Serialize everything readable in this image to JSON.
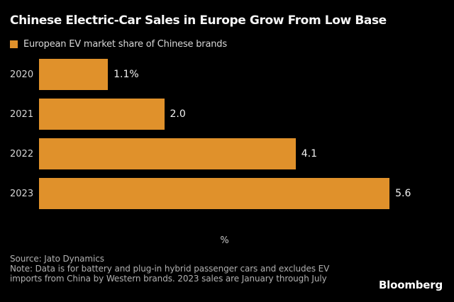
{
  "header": {
    "title": "Chinese Electric-Car Sales in Europe Grow From Low Base"
  },
  "legend": {
    "label": "European EV market share of Chinese brands",
    "swatch_color": "#e0912b"
  },
  "chart_data": {
    "type": "bar",
    "orientation": "horizontal",
    "title": "Chinese Electric-Car Sales in Europe Grow From Low Base",
    "legend": [
      "European EV market share of Chinese brands"
    ],
    "categories": [
      "2020",
      "2021",
      "2022",
      "2023"
    ],
    "values": [
      1.1,
      2.0,
      4.1,
      5.6
    ],
    "value_labels": [
      "1.1%",
      "2.0",
      "4.1",
      "5.6"
    ],
    "xlabel": "%",
    "ylabel": "",
    "xlim": [
      0,
      6
    ],
    "grid": false,
    "legend_position": "top-left",
    "bar_color": "#e0912b",
    "background_color": "#000000"
  },
  "footer": {
    "source": "Source: Jato Dynamics",
    "note_line1": "Note: Data is for battery and plug-in hybrid passenger cars and excludes EV",
    "note_line2": "imports from China by Western brands. 2023 sales are January through July",
    "brand": "Bloomberg"
  }
}
